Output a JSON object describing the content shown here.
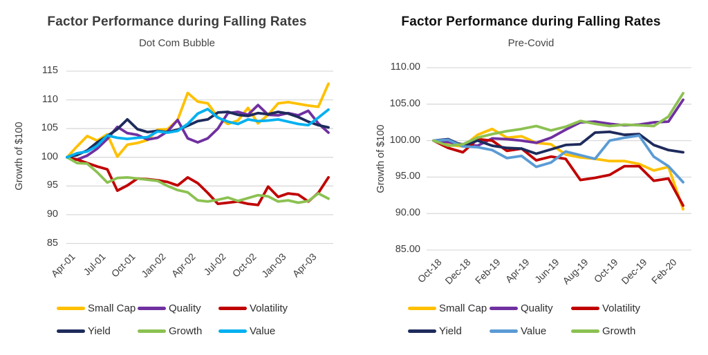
{
  "chart_data": [
    {
      "id": "dotcom",
      "type": "line",
      "title": "Factor Performance during Falling Rates",
      "subtitle": "Dot Com Bubble",
      "ylabel": "Growth of $100",
      "xlabel": "",
      "ylim": [
        85,
        115
      ],
      "grid": true,
      "legend_position": "bottom",
      "y_tick_labels": [
        "115",
        "110",
        "105",
        "100",
        "95",
        "90",
        "85"
      ],
      "x_tick_labels": [
        "Apr-01",
        "Jul-01",
        "Oct-01",
        "Jan-02",
        "Apr-02",
        "Jul-02",
        "Oct-02",
        "Jan-03",
        "Apr-03"
      ],
      "categories": [
        "Apr-01",
        "May-01",
        "Jun-01",
        "Jul-01",
        "Aug-01",
        "Sep-01",
        "Oct-01",
        "Nov-01",
        "Dec-01",
        "Jan-02",
        "Feb-02",
        "Mar-02",
        "Apr-02",
        "May-02",
        "Jun-02",
        "Jul-02",
        "Aug-02",
        "Sep-02",
        "Oct-02",
        "Nov-02",
        "Dec-02",
        "Jan-03",
        "Feb-03",
        "Mar-03",
        "Apr-03",
        "May-03",
        "Jun-03"
      ],
      "series": [
        {
          "name": "Small Cap",
          "color": "#FFC000",
          "values": [
            100,
            101.9,
            103.7,
            102.9,
            104.0,
            100.1,
            102.2,
            102.5,
            103.0,
            104.8,
            104.9,
            106.5,
            111.2,
            109.7,
            109.4,
            107.0,
            105.8,
            106.4,
            108.6,
            105.9,
            107.4,
            109.4,
            109.6,
            109.3,
            109.0,
            108.8,
            112.8
          ]
        },
        {
          "name": "Quality",
          "color": "#7030A0",
          "values": [
            100,
            99.6,
            100.3,
            101.5,
            103.2,
            105.3,
            104.2,
            103.9,
            103.1,
            103.4,
            104.5,
            106.5,
            103.3,
            102.6,
            103.3,
            105.0,
            107.7,
            107.9,
            107.4,
            109.1,
            107.4,
            107.3,
            107.7,
            107.3,
            108.1,
            105.9,
            104.3
          ]
        },
        {
          "name": "Volatility",
          "color": "#C00000",
          "values": [
            100,
            99.6,
            99.0,
            98.4,
            97.9,
            94.2,
            95.1,
            96.3,
            96.2,
            96.0,
            95.7,
            95.1,
            96.5,
            95.5,
            93.8,
            91.9,
            92.1,
            92.3,
            91.9,
            91.7,
            94.9,
            93.1,
            93.7,
            93.5,
            92.3,
            93.8,
            96.5
          ]
        },
        {
          "name": "Yield",
          "color": "#1E2B5C",
          "values": [
            100,
            100.4,
            101.2,
            102.6,
            103.7,
            104.9,
            106.6,
            104.9,
            104.4,
            104.6,
            104.4,
            104.8,
            105.5,
            106.3,
            106.6,
            107.8,
            107.9,
            107.4,
            107.2,
            107.7,
            107.5,
            107.9,
            107.6,
            107.0,
            106.2,
            105.6,
            105.2
          ]
        },
        {
          "name": "Growth",
          "color": "#8CC152",
          "values": [
            100,
            99.0,
            98.9,
            97.4,
            95.6,
            96.4,
            96.5,
            96.3,
            96.1,
            95.9,
            95.0,
            94.3,
            93.9,
            92.5,
            92.3,
            92.6,
            93.0,
            92.4,
            92.9,
            93.4,
            93.2,
            92.3,
            92.5,
            92.1,
            92.4,
            93.7,
            92.8
          ]
        },
        {
          "name": "Value",
          "color": "#00B0F0",
          "values": [
            100,
            100.7,
            101.0,
            102.0,
            103.8,
            103.4,
            103.2,
            103.4,
            103.5,
            104.5,
            104.3,
            104.6,
            105.8,
            107.6,
            108.4,
            106.9,
            106.2,
            105.8,
            106.6,
            106.3,
            106.4,
            106.6,
            106.2,
            105.8,
            105.6,
            106.9,
            108.3
          ]
        }
      ],
      "legend_rows": [
        [
          "Small Cap",
          "Quality",
          "Volatility"
        ],
        [
          "Yield",
          "Growth",
          "Value"
        ]
      ]
    },
    {
      "id": "precovid",
      "type": "line",
      "title": "Factor Performance during Falling Rates",
      "subtitle": "Pre-Covid",
      "ylabel": "Growth of $100",
      "xlabel": "",
      "ylim": [
        85,
        110
      ],
      "grid": true,
      "legend_position": "bottom",
      "y_tick_labels": [
        "110.00",
        "105.00",
        "100.00",
        "95.00",
        "90.00",
        "85.00"
      ],
      "x_tick_labels": [
        "Oct-18",
        "Dec-18",
        "Feb-19",
        "Apr-19",
        "Jun-19",
        "Aug-19",
        "Oct-19",
        "Dec-19",
        "Feb-20"
      ],
      "categories": [
        "Oct-18",
        "Nov-18",
        "Dec-18",
        "Jan-19",
        "Feb-19",
        "Mar-19",
        "Apr-19",
        "May-19",
        "Jun-19",
        "Jul-19",
        "Aug-19",
        "Sep-19",
        "Oct-19",
        "Nov-19",
        "Dec-19",
        "Jan-20",
        "Feb-20",
        "Mar-20"
      ],
      "series": [
        {
          "name": "Small Cap",
          "color": "#FFC000",
          "values": [
            100,
            99.4,
            99.2,
            100.8,
            101.6,
            100.4,
            100.6,
            99.7,
            99.5,
            98.1,
            97.7,
            97.5,
            97.2,
            97.2,
            96.8,
            95.9,
            96.4,
            90.6
          ]
        },
        {
          "name": "Quality",
          "color": "#7030A0",
          "values": [
            100,
            99.8,
            99.5,
            99.3,
            100.3,
            100.2,
            100.0,
            99.7,
            100.4,
            101.5,
            102.5,
            102.6,
            102.3,
            102.1,
            102.2,
            102.5,
            102.6,
            105.6
          ]
        },
        {
          "name": "Volatility",
          "color": "#C00000",
          "values": [
            100,
            99.0,
            98.4,
            100.2,
            100.0,
            98.6,
            98.9,
            97.3,
            97.8,
            97.5,
            94.6,
            94.9,
            95.3,
            96.5,
            96.5,
            94.5,
            94.8,
            91.1
          ]
        },
        {
          "name": "Yield",
          "color": "#1E2B5C",
          "values": [
            100,
            100.2,
            99.3,
            100.0,
            99.3,
            99.0,
            98.9,
            98.2,
            98.8,
            99.4,
            99.5,
            101.1,
            101.2,
            100.8,
            100.9,
            99.4,
            98.7,
            98.4
          ]
        },
        {
          "name": "Value",
          "color": "#5B9BD5",
          "values": [
            100,
            100.1,
            99.2,
            99.1,
            98.7,
            97.6,
            97.9,
            96.4,
            97.0,
            98.5,
            98.0,
            97.5,
            100.0,
            100.4,
            100.7,
            97.8,
            96.5,
            94.3
          ]
        },
        {
          "name": "Growth",
          "color": "#8CC152",
          "values": [
            100,
            99.3,
            99.5,
            100.4,
            100.9,
            101.3,
            101.6,
            102.0,
            101.4,
            101.9,
            102.7,
            102.3,
            102.0,
            102.2,
            102.1,
            102.0,
            103.3,
            106.5
          ]
        }
      ],
      "legend_rows": [
        [
          "Small Cap",
          "Quality",
          "Volatility"
        ],
        [
          "Yield",
          "Value",
          "Growth"
        ]
      ]
    }
  ],
  "colors": {
    "gridline": "#D9D9D9",
    "small_cap": "#FFC000",
    "quality": "#7030A0",
    "volatility": "#C00000",
    "yield": "#1E2B5C",
    "growth": "#8CC152",
    "value_dotcom": "#00B0F0",
    "value_precovid": "#5B9BD5"
  }
}
